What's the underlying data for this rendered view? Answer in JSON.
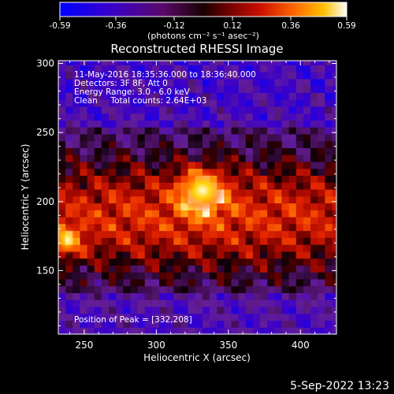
{
  "colorbar": {
    "ticks": [
      "-0.59",
      "-0.36",
      "-0.12",
      "0.12",
      "0.36",
      "0.59"
    ],
    "unit_label": "(photons cm⁻² s⁻¹ asec⁻²)",
    "range": [
      -0.59,
      0.59
    ]
  },
  "chart_data": {
    "type": "heatmap",
    "title": "Reconstructed RHESSI Image",
    "xlabel": "Heliocentric X (arcsec)",
    "ylabel": "Heliocentric Y (arcsec)",
    "xlim": [
      232,
      425
    ],
    "ylim": [
      104,
      302
    ],
    "xticks": [
      250,
      300,
      350,
      400
    ],
    "yticks": [
      150,
      200,
      250,
      300
    ],
    "annotations": [
      "11-May-2016 18:35:36.000 to 18:36:40.000",
      "Detectors: 3F 8F, Att 0",
      "Energy Range: 3.0 - 6.0 keV",
      "Clean     Total counts: 2.64E+03"
    ],
    "peak_label": "Position of Peak = [332,208]",
    "peak": [
      332,
      208
    ],
    "secondary_source": [
      238,
      172
    ]
  },
  "footer": {
    "timestamp": "5-Sep-2022 13:23"
  }
}
